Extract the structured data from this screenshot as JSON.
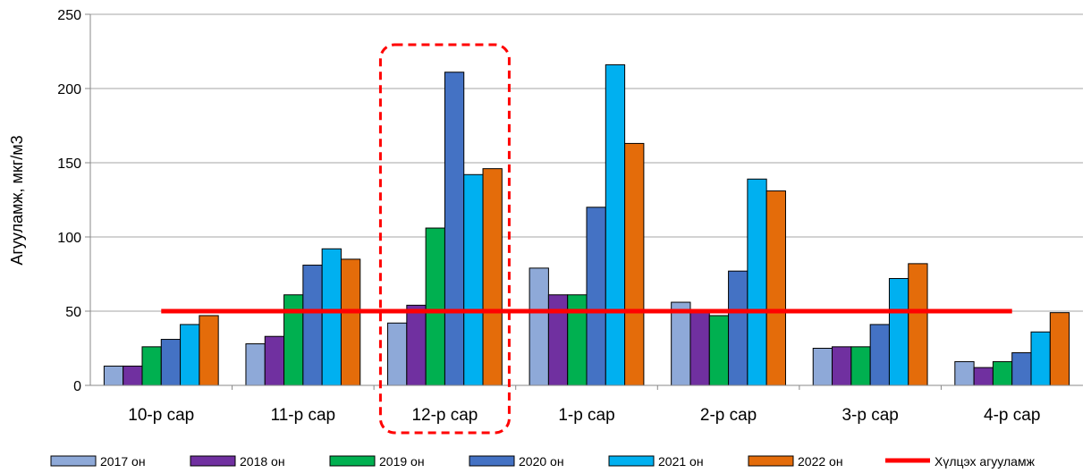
{
  "chart_data": {
    "type": "bar",
    "ylabel": "Агууламж, мкг/м3",
    "xlabel": "",
    "ylim": [
      0,
      250
    ],
    "yticks": [
      0,
      50,
      100,
      150,
      200,
      250
    ],
    "grid": "horizontal",
    "legend_position": "bottom",
    "categories": [
      "10-р сар",
      "11-р сар",
      "12-р сар",
      "1-р сар",
      "2-р сар",
      "3-р сар",
      "4-р сар"
    ],
    "series": [
      {
        "name": "2017 он",
        "color": "#8EA9D8",
        "values": [
          13,
          28,
          42,
          79,
          56,
          25,
          16
        ]
      },
      {
        "name": "2018 он",
        "color": "#7030A0",
        "values": [
          13,
          33,
          54,
          61,
          50,
          26,
          12
        ]
      },
      {
        "name": "2019 он",
        "color": "#00B050",
        "values": [
          26,
          61,
          106,
          61,
          47,
          26,
          16
        ]
      },
      {
        "name": "2020 он",
        "color": "#4472C4",
        "values": [
          31,
          81,
          211,
          120,
          77,
          41,
          22
        ]
      },
      {
        "name": "2021 он",
        "color": "#00B0F0",
        "values": [
          41,
          92,
          142,
          216,
          139,
          72,
          36
        ]
      },
      {
        "name": "2022 он",
        "color": "#E46C0A",
        "values": [
          47,
          85,
          146,
          163,
          131,
          82,
          49
        ]
      }
    ],
    "threshold": {
      "name": "Хүлцэх агууламж",
      "value": 50,
      "color": "#FF0000"
    },
    "highlight": {
      "category": "12-р сар",
      "style": "dashed",
      "color": "#FF0000"
    }
  }
}
